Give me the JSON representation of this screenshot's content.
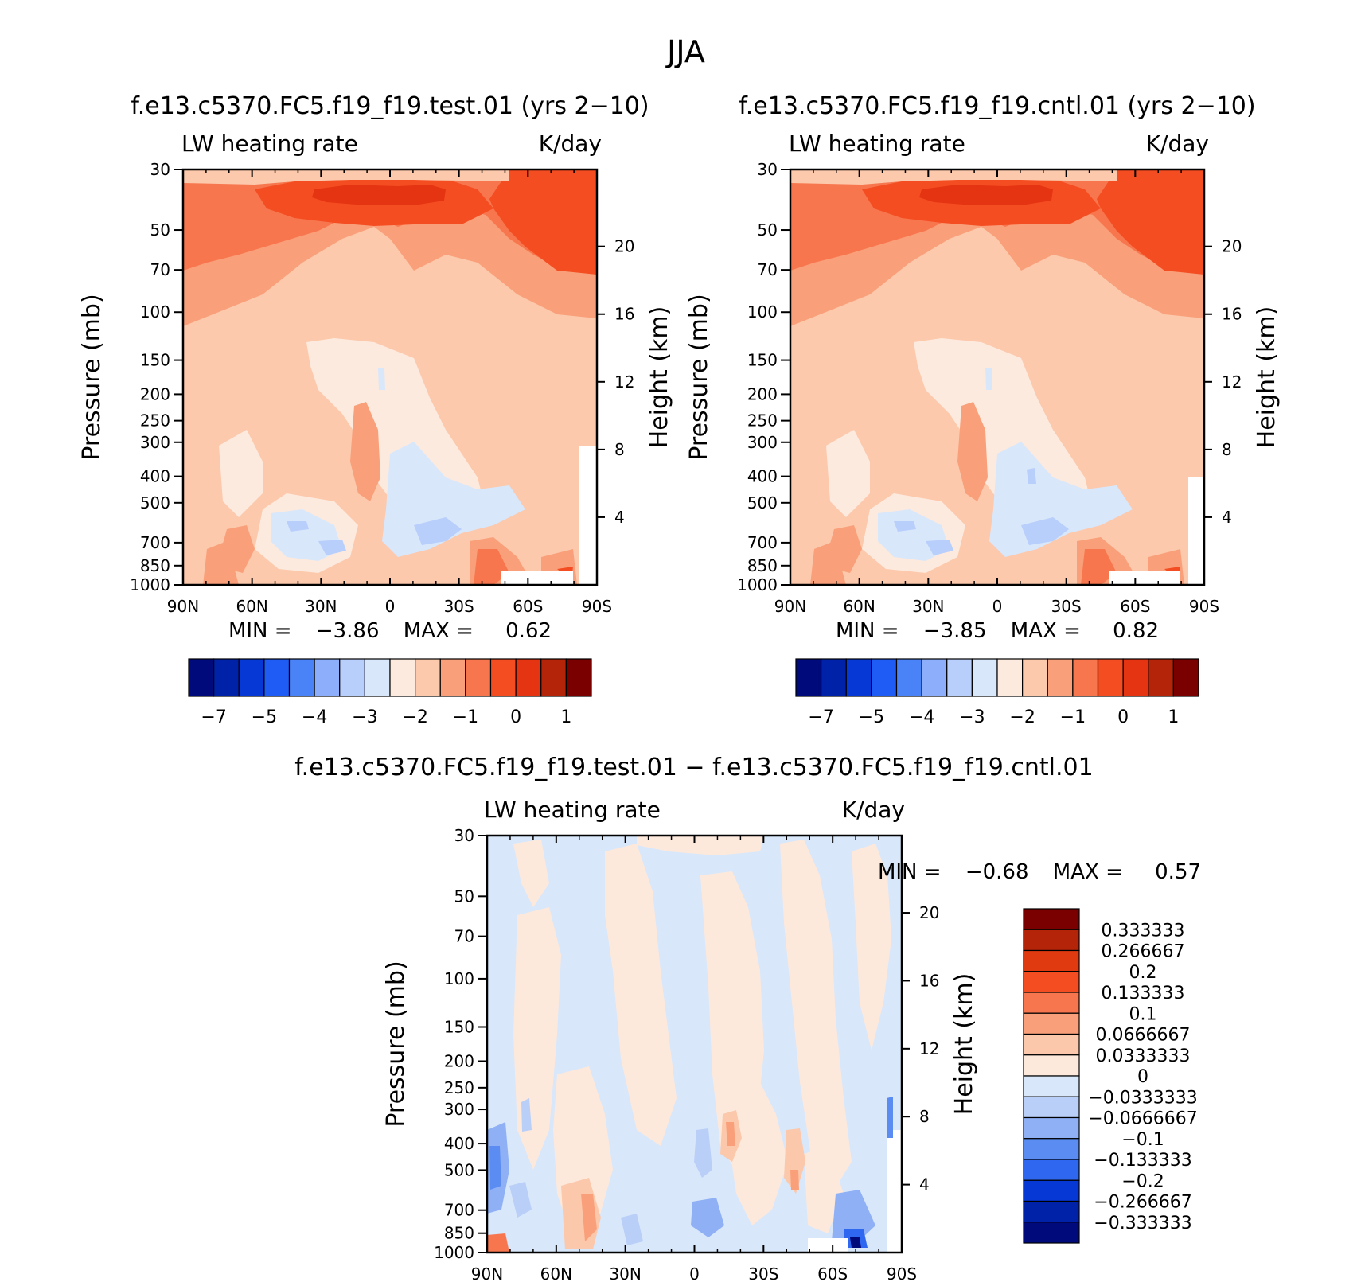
{
  "title": "JJA",
  "colors": {
    "panel_scale": [
      "#000a7a",
      "#0022a8",
      "#0638d6",
      "#1f5bf5",
      "#4a82f7",
      "#8daefa",
      "#b8cefb",
      "#d9e7fb",
      "#fdeade",
      "#fcc9ac",
      "#f9a07a",
      "#f7764e",
      "#f54d22",
      "#e53412",
      "#b32408",
      "#7a0000"
    ],
    "diff_scale": [
      "#000a7a",
      "#0022a8",
      "#0638d6",
      "#2f67f0",
      "#5a8cf2",
      "#8fb0f5",
      "#b9cff7",
      "#d8e7fa",
      "#fde9dc",
      "#fcc8ab",
      "#f9a07a",
      "#f7764e",
      "#f54d22",
      "#e03a10",
      "#b32408",
      "#7a0000"
    ]
  },
  "chart_data": [
    {
      "id": "test",
      "type": "heatmap",
      "title": "f.e13.c5370.FC5.f19_f19.test.01 (yrs 2−10)",
      "subtitle_left": "LW heating rate",
      "subtitle_right": "K/day",
      "xlabel": "",
      "ylabel": "Pressure (mb)",
      "ylabel_right": "Height (km)",
      "x_ticks": [
        "90N",
        "60N",
        "30N",
        "0",
        "30S",
        "60S",
        "90S"
      ],
      "y_ticks": [
        "30",
        "50",
        "70",
        "100",
        "150",
        "200",
        "250",
        "300",
        "400",
        "500",
        "700",
        "850",
        "1000"
      ],
      "y_ticks_values": [
        30,
        50,
        70,
        100,
        150,
        200,
        250,
        300,
        400,
        500,
        700,
        850,
        1000
      ],
      "right_ticks": [
        "20",
        "16",
        "12",
        "8",
        "4"
      ],
      "right_tick_values_km": [
        20,
        16,
        12,
        8,
        4
      ],
      "ylim_mb": [
        1000,
        30
      ],
      "stats": {
        "min_label": "MIN =",
        "min": "−3.86",
        "max_label": "MAX =",
        "max": "0.62"
      },
      "levels": [
        -7,
        -6.5,
        -6,
        -5.5,
        -5,
        -4.5,
        -4,
        -3.5,
        -3,
        -2.5,
        -2,
        -1.5,
        -1,
        -0.5,
        0,
        0.5,
        1,
        1.5
      ],
      "colorbar_labels": [
        "−7",
        "−5",
        "−4",
        "−3",
        "−2",
        "−1",
        "0",
        "1"
      ]
    },
    {
      "id": "cntl",
      "type": "heatmap",
      "title": "f.e13.c5370.FC5.f19_f19.cntl.01 (yrs 2−10)",
      "subtitle_left": "LW heating rate",
      "subtitle_right": "K/day",
      "xlabel": "",
      "ylabel": "Pressure (mb)",
      "ylabel_right": "Height (km)",
      "x_ticks": [
        "90N",
        "60N",
        "30N",
        "0",
        "30S",
        "60S",
        "90S"
      ],
      "y_ticks": [
        "30",
        "50",
        "70",
        "100",
        "150",
        "200",
        "250",
        "300",
        "400",
        "500",
        "700",
        "850",
        "1000"
      ],
      "y_ticks_values": [
        30,
        50,
        70,
        100,
        150,
        200,
        250,
        300,
        400,
        500,
        700,
        850,
        1000
      ],
      "right_ticks": [
        "20",
        "16",
        "12",
        "8",
        "4"
      ],
      "right_tick_values_km": [
        20,
        16,
        12,
        8,
        4
      ],
      "ylim_mb": [
        1000,
        30
      ],
      "stats": {
        "min_label": "MIN =",
        "min": "−3.85",
        "max_label": "MAX =",
        "max": "0.82"
      },
      "levels": [
        -7,
        -6.5,
        -6,
        -5.5,
        -5,
        -4.5,
        -4,
        -3.5,
        -3,
        -2.5,
        -2,
        -1.5,
        -1,
        -0.5,
        0,
        0.5,
        1,
        1.5
      ],
      "colorbar_labels": [
        "−7",
        "−5",
        "−4",
        "−3",
        "−2",
        "−1",
        "0",
        "1"
      ]
    },
    {
      "id": "diff",
      "type": "heatmap",
      "title": "f.e13.c5370.FC5.f19_f19.test.01 − f.e13.c5370.FC5.f19_f19.cntl.01",
      "subtitle_left": "LW heating rate",
      "subtitle_right": "K/day",
      "xlabel": "",
      "ylabel": "Pressure (mb)",
      "ylabel_right": "Height (km)",
      "x_ticks": [
        "90N",
        "60N",
        "30N",
        "0",
        "30S",
        "60S",
        "90S"
      ],
      "y_ticks": [
        "30",
        "50",
        "70",
        "100",
        "150",
        "200",
        "250",
        "300",
        "400",
        "500",
        "700",
        "850",
        "1000"
      ],
      "y_ticks_values": [
        30,
        50,
        70,
        100,
        150,
        200,
        250,
        300,
        400,
        500,
        700,
        850,
        1000
      ],
      "right_ticks": [
        "20",
        "16",
        "12",
        "8",
        "4"
      ],
      "right_tick_values_km": [
        20,
        16,
        12,
        8,
        4
      ],
      "ylim_mb": [
        1000,
        30
      ],
      "stats": {
        "min_label": "MIN =",
        "min": "−0.68",
        "max_label": "MAX =",
        "max": "0.57"
      },
      "colorbar_labels": [
        "0.333333",
        "0.266667",
        "0.2",
        "0.133333",
        "0.1",
        "0.0666667",
        "0.0333333",
        "0",
        "−0.0333333",
        "−0.0666667",
        "−0.1",
        "−0.133333",
        "−0.2",
        "−0.266667",
        "−0.333333"
      ]
    }
  ]
}
